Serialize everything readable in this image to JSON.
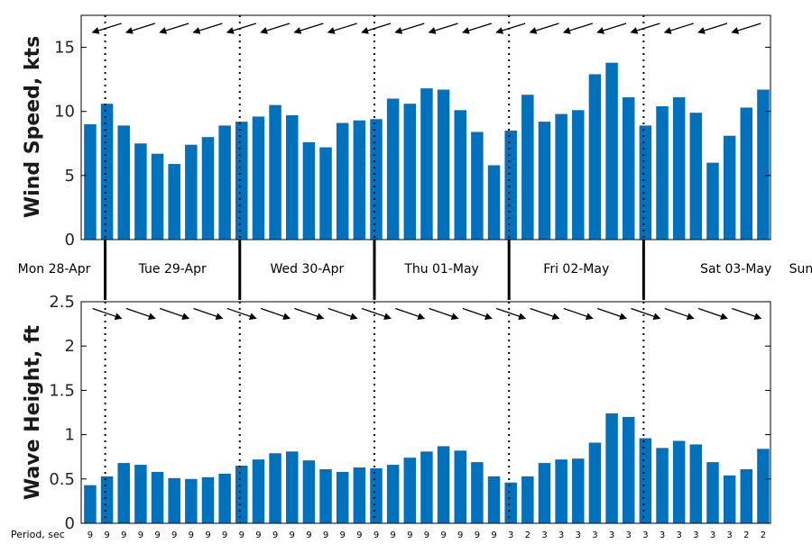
{
  "chart_data": [
    {
      "type": "bar",
      "title": "",
      "ylabel": "Wind Speed, kts",
      "ylim": [
        0,
        17.5
      ],
      "yticks": [
        "0",
        "5",
        "10",
        "15"
      ],
      "bar_color": "#0072BD",
      "arrow_direction": "from east (arrows pointing west, slightly down-left)",
      "values": [
        9.0,
        10.6,
        8.9,
        7.5,
        6.7,
        5.9,
        7.4,
        8.0,
        8.9,
        9.2,
        9.6,
        10.5,
        9.7,
        7.6,
        7.2,
        9.1,
        9.3,
        9.4,
        11.0,
        10.6,
        11.8,
        11.7,
        10.1,
        8.4,
        5.8,
        8.5,
        11.3,
        9.2,
        9.8,
        10.1,
        12.9,
        13.8,
        11.1,
        8.9,
        10.4,
        11.1,
        9.9,
        6.0,
        8.1,
        10.3,
        11.7
      ]
    },
    {
      "type": "bar",
      "title": "",
      "ylabel": "Wave Height, ft",
      "ylim": [
        0,
        2.5
      ],
      "yticks": [
        "0",
        "0.5",
        "1",
        "1.5",
        "2",
        "2.5"
      ],
      "bar_color": "#0072BD",
      "arrow_direction": "toward south-east (arrows pointing right, slightly down)",
      "values": [
        0.43,
        0.53,
        0.68,
        0.66,
        0.58,
        0.51,
        0.5,
        0.52,
        0.56,
        0.65,
        0.72,
        0.79,
        0.81,
        0.71,
        0.61,
        0.58,
        0.63,
        0.62,
        0.66,
        0.74,
        0.81,
        0.87,
        0.82,
        0.69,
        0.53,
        0.46,
        0.53,
        0.68,
        0.72,
        0.73,
        0.91,
        1.24,
        1.2,
        0.96,
        0.85,
        0.93,
        0.89,
        0.69,
        0.54,
        0.61,
        0.84
      ]
    }
  ],
  "days": [
    "Mon 28-Apr",
    "Tue 29-Apr",
    "Wed 30-Apr",
    "Thu 01-May",
    "Fri 02-May",
    "Sat 03-May",
    "Sun"
  ],
  "period_label": "Period, sec",
  "periods": [
    "9",
    "9",
    "9",
    "9",
    "9",
    "9",
    "9",
    "9",
    "9",
    "9",
    "9",
    "9",
    "9",
    "9",
    "9",
    "9",
    "9",
    "9",
    "9",
    "9",
    "9",
    "9",
    "9",
    "9",
    "9",
    "3",
    "2",
    "3",
    "3",
    "3",
    "3",
    "3",
    "3",
    "3",
    "3",
    "3",
    "3",
    "3",
    "3",
    "2",
    "2"
  ]
}
